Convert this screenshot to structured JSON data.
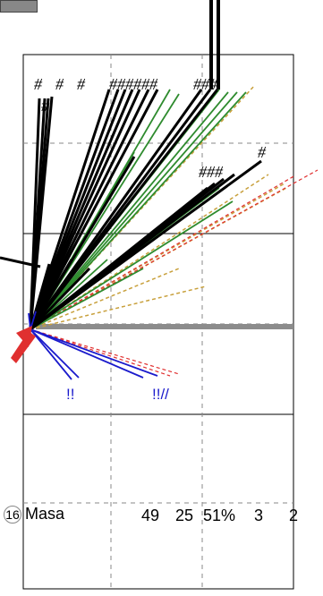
{
  "hash": "#",
  "hash_groups": [
    "#",
    "#",
    "#",
    "######",
    "###",
    "#",
    "###",
    "#"
  ],
  "exclaims": [
    "!!",
    "!!//"
  ],
  "row": {
    "number": "16",
    "name": "Masa",
    "stats": [
      "49",
      "25",
      "51%",
      "3",
      "2"
    ]
  },
  "colors": {
    "black": "#000000",
    "green": "#2e8b2e",
    "dark_green": "#1a6b1a",
    "tan": "#c8a03c",
    "red": "#e03030",
    "blue": "#1a1acc",
    "grey_bar": "#8c8c8c",
    "grid": "#888888"
  }
}
